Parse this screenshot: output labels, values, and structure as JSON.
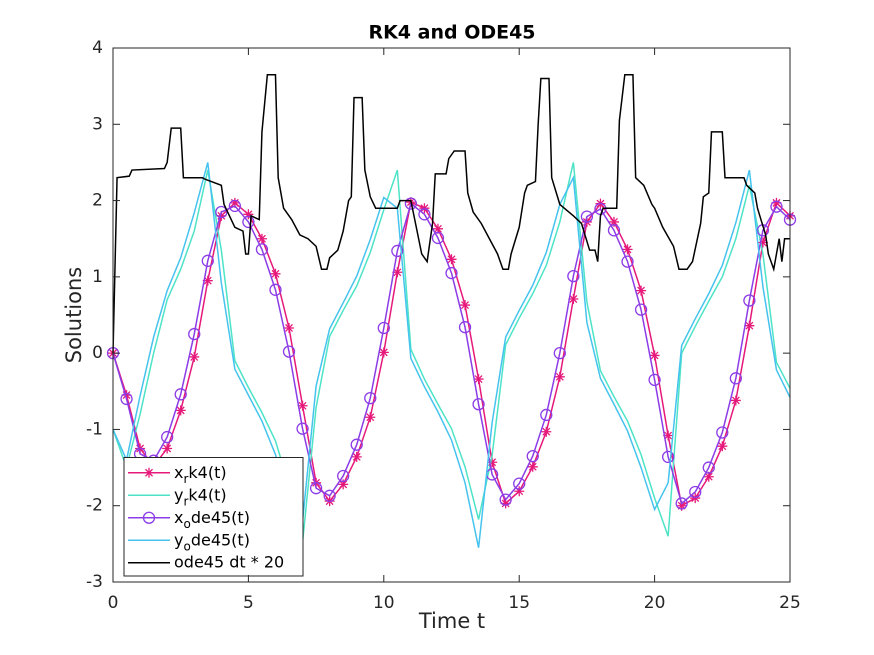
{
  "chart_data": {
    "type": "line",
    "title": "RK4 and ODE45",
    "xlabel": "Time t",
    "ylabel": "Solutions",
    "xlim": [
      0,
      25
    ],
    "ylim": [
      -3,
      4
    ],
    "xticks": [
      0,
      5,
      10,
      15,
      20,
      25
    ],
    "yticks": [
      -3,
      -2,
      -1,
      0,
      1,
      2,
      3,
      4
    ],
    "grid": false,
    "legend": "lower-left",
    "x": [
      0,
      0.5,
      1,
      1.5,
      2,
      2.5,
      3,
      3.5,
      4,
      4.5,
      5,
      5.5,
      6,
      6.5,
      7,
      7.5,
      8,
      8.5,
      9,
      9.5,
      10,
      10.5,
      11,
      11.5,
      12,
      12.5,
      13,
      13.5,
      14,
      14.5,
      15,
      15.5,
      16,
      16.5,
      17,
      17.5,
      18,
      18.5,
      19,
      19.5,
      20,
      20.5,
      21,
      21.5,
      22,
      22.5,
      23,
      23.5,
      24,
      24.5,
      25
    ],
    "series": [
      {
        "name": "x_rk4(t)",
        "color": "#e6197a",
        "marker": "asterisk",
        "values": [
          0,
          -0.55,
          -1.25,
          -1.48,
          -1.25,
          -0.75,
          -0.05,
          0.95,
          1.8,
          1.97,
          1.82,
          1.5,
          1.04,
          0.33,
          -0.69,
          -1.7,
          -1.94,
          -1.72,
          -1.36,
          -0.84,
          0.01,
          1.06,
          1.98,
          1.9,
          1.63,
          1.23,
          0.63,
          -0.34,
          -1.43,
          -1.97,
          -1.81,
          -1.49,
          -1.03,
          -0.31,
          0.71,
          1.72,
          1.96,
          1.72,
          1.36,
          0.82,
          -0.03,
          -1.08,
          -2.0,
          -1.9,
          -1.62,
          -1.22,
          -0.62,
          0.36,
          1.45,
          1.97,
          1.8
        ]
      },
      {
        "name": "y_rk4(t)",
        "color": "#4de3c7",
        "marker": "none",
        "values": [
          -1.0,
          -1.5,
          -0.8,
          0.0,
          0.7,
          1.1,
          1.6,
          2.4,
          1.35,
          -0.1,
          -0.45,
          -0.78,
          -1.15,
          -1.74,
          -2.48,
          -0.71,
          0.22,
          0.56,
          0.88,
          1.32,
          1.88,
          2.4,
          0.05,
          -0.34,
          -0.67,
          -0.99,
          -1.49,
          -2.18,
          -1.34,
          0.11,
          0.46,
          0.78,
          1.15,
          1.72,
          2.5,
          0.67,
          -0.23,
          -0.57,
          -0.89,
          -1.33,
          -1.9,
          -2.4,
          0.0,
          0.35,
          0.68,
          1.0,
          1.5,
          2.2,
          1.3,
          -0.12,
          -0.46
        ]
      },
      {
        "name": "x_ode45(t)",
        "color": "#8c3ce6",
        "marker": "circle",
        "values": [
          0,
          -0.6,
          -1.32,
          -1.41,
          -1.1,
          -0.54,
          0.25,
          1.21,
          1.85,
          1.93,
          1.72,
          1.36,
          0.83,
          0.02,
          -0.99,
          -1.77,
          -1.87,
          -1.61,
          -1.2,
          -0.59,
          0.33,
          1.34,
          1.96,
          1.82,
          1.51,
          1.05,
          0.34,
          -0.67,
          -1.59,
          -1.92,
          -1.71,
          -1.35,
          -0.81,
          0.0,
          1.01,
          1.79,
          1.89,
          1.61,
          1.2,
          0.57,
          -0.35,
          -1.36,
          -1.97,
          -1.82,
          -1.5,
          -1.04,
          -0.33,
          0.69,
          1.61,
          1.92,
          1.75
        ]
      },
      {
        "name": "y_ode45(t)",
        "color": "#45c3ee",
        "marker": "none",
        "values": [
          -1.0,
          -1.4,
          -0.56,
          0.21,
          0.82,
          1.25,
          1.84,
          2.5,
          0.92,
          -0.21,
          -0.55,
          -0.89,
          -1.33,
          -1.96,
          -2.2,
          -0.43,
          0.32,
          0.66,
          1.01,
          1.49,
          2.04,
          1.9,
          -0.07,
          -0.44,
          -0.77,
          -1.14,
          -1.7,
          -2.55,
          -0.91,
          0.21,
          0.56,
          0.89,
          1.32,
          1.95,
          2.3,
          0.4,
          -0.33,
          -0.67,
          -1.02,
          -1.5,
          -2.05,
          -1.7,
          0.1,
          0.45,
          0.78,
          1.15,
          1.71,
          2.4,
          0.87,
          -0.22,
          -0.58
        ]
      },
      {
        "name": "ode45 dt * 20",
        "color": "#000000",
        "marker": "none",
        "x": [
          0,
          0.15,
          0.6,
          0.7,
          1.9,
          2.0,
          2.15,
          2.5,
          2.6,
          3.3,
          3.4,
          4.0,
          4.1,
          4.3,
          4.5,
          4.8,
          4.9,
          5.0,
          5.1,
          5.4,
          5.5,
          5.7,
          6.0,
          6.1,
          6.3,
          6.6,
          6.9,
          7.2,
          7.5,
          7.7,
          7.9,
          8.0,
          8.3,
          8.5,
          8.7,
          8.8,
          8.9,
          9.2,
          9.3,
          9.5,
          9.7,
          10.5,
          10.6,
          11.0,
          11.2,
          11.4,
          11.6,
          11.8,
          11.9,
          12.3,
          12.4,
          12.6,
          13.0,
          13.1,
          13.3,
          13.6,
          13.9,
          14.2,
          14.4,
          14.6,
          14.7,
          15.0,
          15.2,
          15.3,
          15.6,
          15.7,
          15.8,
          16.1,
          16.2,
          16.5,
          17.0,
          17.3,
          17.6,
          17.8,
          17.9,
          18.0,
          18.1,
          18.6,
          18.7,
          18.9,
          19.2,
          19.3,
          19.6,
          19.9,
          20.0,
          20.3,
          20.7,
          20.9,
          21.2,
          21.4,
          21.7,
          21.8,
          22.0,
          22.1,
          22.5,
          22.6,
          23.3,
          23.4,
          23.7,
          23.8,
          24.1,
          24.2,
          24.4,
          24.6,
          24.7,
          24.8,
          25.0
        ],
        "values": [
          0,
          2.3,
          2.32,
          2.4,
          2.42,
          2.5,
          2.95,
          2.95,
          2.3,
          2.3,
          2.28,
          2.2,
          1.95,
          1.8,
          1.65,
          1.6,
          1.3,
          1.3,
          1.8,
          1.75,
          2.9,
          3.65,
          3.65,
          2.3,
          1.9,
          1.75,
          1.55,
          1.5,
          1.4,
          1.1,
          1.1,
          1.25,
          1.35,
          1.6,
          2.0,
          2.05,
          3.35,
          3.35,
          2.4,
          2.05,
          1.9,
          1.9,
          2.0,
          2.0,
          1.65,
          1.3,
          1.2,
          1.7,
          2.35,
          2.35,
          2.55,
          2.65,
          2.65,
          2.1,
          1.85,
          1.7,
          1.5,
          1.3,
          1.1,
          1.1,
          1.3,
          1.65,
          2.1,
          2.2,
          2.25,
          3.0,
          3.6,
          3.6,
          2.3,
          1.95,
          1.8,
          1.7,
          1.35,
          1.35,
          1.2,
          1.8,
          1.9,
          1.9,
          3.05,
          3.65,
          3.65,
          2.3,
          2.2,
          1.95,
          1.9,
          1.65,
          1.4,
          1.1,
          1.1,
          1.2,
          1.7,
          2.05,
          2.1,
          2.9,
          2.9,
          2.3,
          2.3,
          2.2,
          2.1,
          1.9,
          1.55,
          1.3,
          1.1,
          1.5,
          1.2,
          1.5,
          1.5
        ]
      }
    ]
  }
}
